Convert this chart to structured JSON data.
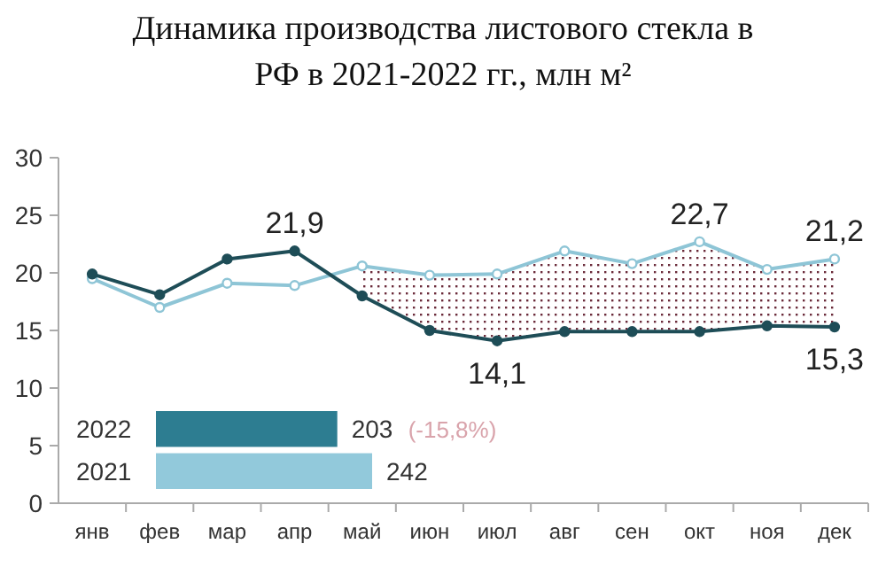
{
  "chart_data": [
    {
      "type": "line",
      "title": "Динамика производства листового стекла в РФ в 2021-2022 гг., млн м²",
      "categories": [
        "янв",
        "фев",
        "мар",
        "апр",
        "май",
        "июн",
        "июл",
        "авг",
        "сен",
        "окт",
        "ноя",
        "дек"
      ],
      "series": [
        {
          "color": "#1e4d57",
          "values": [
            19.9,
            18.1,
            21.2,
            21.9,
            18.0,
            15.0,
            14.1,
            14.9,
            14.9,
            14.9,
            15.4,
            15.3
          ],
          "value_labels": [
            null,
            null,
            null,
            "21,9",
            null,
            null,
            "14,1",
            null,
            null,
            null,
            null,
            "15,3"
          ],
          "lower": [
            null,
            null,
            null,
            null,
            18.0,
            15.0,
            14.1,
            14.9,
            14.9,
            14.9,
            15.4,
            15.3
          ],
          "upper": [
            null,
            null,
            null,
            null,
            20.6,
            19.8,
            19.9,
            21.9,
            20.8,
            22.7,
            20.3,
            21.2
          ]
        },
        {
          "color": "#8ec5d6",
          "values": [
            19.5,
            17.0,
            19.1,
            18.9,
            20.6,
            19.8,
            19.9,
            21.9,
            20.8,
            22.7,
            20.3,
            21.2
          ],
          "value_labels": [
            null,
            null,
            null,
            null,
            null,
            null,
            null,
            null,
            null,
            "22,7",
            null,
            "21,2"
          ]
        }
      ],
      "ylim": [
        0,
        30
      ],
      "yticks": [
        0,
        5,
        10,
        15,
        20,
        25,
        30
      ],
      "grid": false,
      "marker": "circle",
      "line_style": "solid"
    },
    {
      "type": "bar",
      "orientation": "horizontal",
      "categories": [
        "2022",
        "2021"
      ],
      "values": [
        203,
        242
      ],
      "colors": [
        "#2d7d91",
        "#92c9db"
      ],
      "data_labels": true,
      "annotations": [
        "(-15,8%)"
      ]
    }
  ]
}
